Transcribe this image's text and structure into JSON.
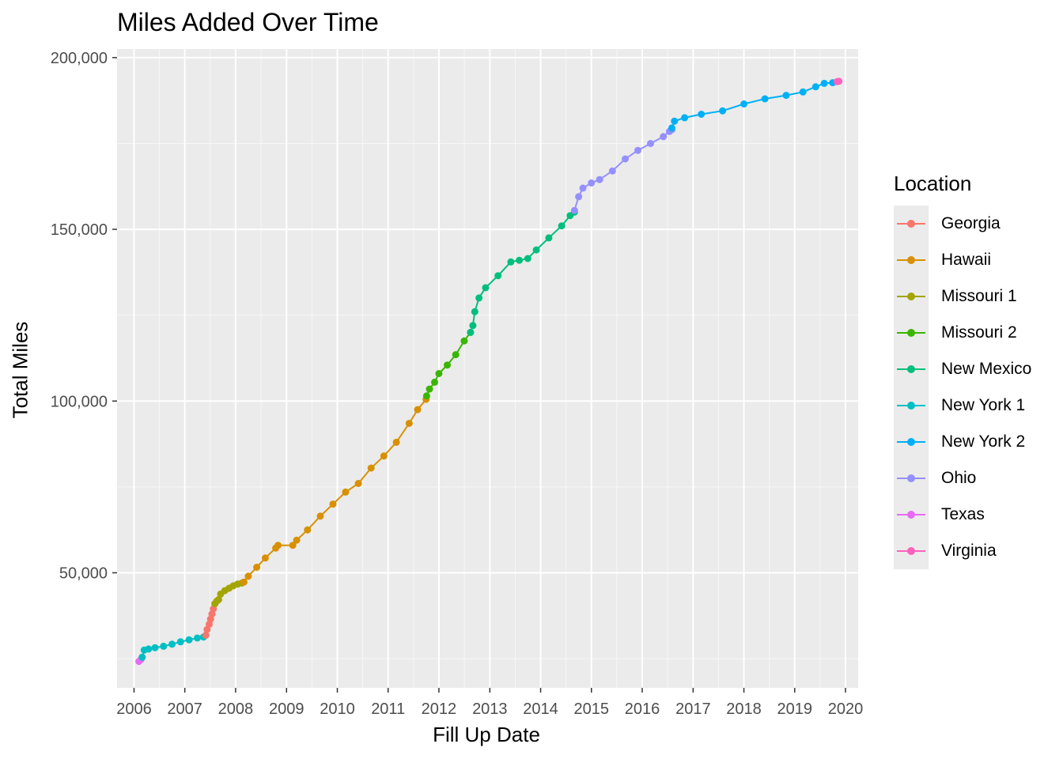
{
  "chart_data": {
    "type": "line",
    "title": "Miles Added Over Time",
    "xlabel": "Fill Up Date",
    "ylabel": "Total Miles",
    "xlim": [
      "2005-09-01",
      "2020-04-01"
    ],
    "ylim": [
      16500,
      202500
    ],
    "x_ticks": [
      "2006",
      "2007",
      "2008",
      "2009",
      "2010",
      "2011",
      "2012",
      "2013",
      "2014",
      "2015",
      "2016",
      "2017",
      "2018",
      "2019",
      "2020"
    ],
    "y_ticks": [
      {
        "value": 50000,
        "label": "50,000"
      },
      {
        "value": 100000,
        "label": "100,000"
      },
      {
        "value": 150000,
        "label": "150,000"
      },
      {
        "value": 200000,
        "label": "200,000"
      }
    ],
    "grid": true,
    "legend": {
      "title": "Location",
      "position": "right"
    },
    "markers": true,
    "series": [
      {
        "name": "Texas",
        "color": "#e76bf3",
        "points": [
          [
            "2006-02-05",
            24200
          ],
          [
            "2006-02-20",
            24800
          ],
          [
            "2006-03-01",
            25400
          ]
        ]
      },
      {
        "name": "New York 1",
        "color": "#00bfc4",
        "points": [
          [
            "2006-03-01",
            25400
          ],
          [
            "2006-03-15",
            27500
          ],
          [
            "2006-04-15",
            27800
          ],
          [
            "2006-06-01",
            28200
          ],
          [
            "2006-08-01",
            28600
          ],
          [
            "2006-10-01",
            29200
          ],
          [
            "2006-12-01",
            29900
          ],
          [
            "2007-02-01",
            30500
          ],
          [
            "2007-04-01",
            31000
          ],
          [
            "2007-05-15",
            31300
          ],
          [
            "2007-06-01",
            31800
          ]
        ]
      },
      {
        "name": "Georgia",
        "color": "#f8766d",
        "points": [
          [
            "2007-06-01",
            31800
          ],
          [
            "2007-06-10",
            33500
          ],
          [
            "2007-06-25",
            35000
          ],
          [
            "2007-07-05",
            36500
          ],
          [
            "2007-07-15",
            38000
          ],
          [
            "2007-07-25",
            39500
          ],
          [
            "2007-08-05",
            41000
          ]
        ]
      },
      {
        "name": "Missouri 1",
        "color": "#a3a500",
        "points": [
          [
            "2007-08-05",
            41000
          ],
          [
            "2007-08-20",
            41800
          ],
          [
            "2007-09-01",
            42200
          ],
          [
            "2007-09-15",
            43800
          ],
          [
            "2007-10-15",
            44800
          ],
          [
            "2007-11-15",
            45500
          ],
          [
            "2007-12-15",
            46200
          ],
          [
            "2008-01-15",
            46700
          ],
          [
            "2008-02-15",
            47000
          ]
        ]
      },
      {
        "name": "Hawaii",
        "color": "#d89000",
        "points": [
          [
            "2008-03-01",
            47300
          ],
          [
            "2008-04-01",
            49000
          ],
          [
            "2008-06-01",
            51600
          ],
          [
            "2008-08-01",
            54300
          ],
          [
            "2008-10-15",
            57200
          ],
          [
            "2008-11-01",
            58000
          ],
          [
            "2009-02-15",
            58000
          ],
          [
            "2009-03-15",
            59500
          ],
          [
            "2009-06-01",
            62500
          ],
          [
            "2009-09-01",
            66500
          ],
          [
            "2009-12-01",
            70000
          ],
          [
            "2010-03-01",
            73500
          ],
          [
            "2010-06-01",
            76000
          ],
          [
            "2010-09-01",
            80500
          ],
          [
            "2010-12-01",
            84000
          ],
          [
            "2011-03-01",
            88000
          ],
          [
            "2011-06-01",
            93500
          ],
          [
            "2011-08-01",
            97500
          ],
          [
            "2011-10-01",
            100500
          ]
        ]
      },
      {
        "name": "Missouri 2",
        "color": "#39b600",
        "points": [
          [
            "2011-10-05",
            101500
          ],
          [
            "2011-10-25",
            103500
          ],
          [
            "2011-12-01",
            105500
          ],
          [
            "2012-01-01",
            108000
          ],
          [
            "2012-03-01",
            110500
          ],
          [
            "2012-05-01",
            113500
          ],
          [
            "2012-07-01",
            117500
          ],
          [
            "2012-08-15",
            120000
          ]
        ]
      },
      {
        "name": "New Mexico",
        "color": "#00bf7d",
        "points": [
          [
            "2012-08-15",
            120000
          ],
          [
            "2012-09-01",
            122000
          ],
          [
            "2012-09-15",
            126000
          ],
          [
            "2012-10-15",
            130000
          ],
          [
            "2012-12-01",
            133000
          ],
          [
            "2013-03-01",
            136500
          ],
          [
            "2013-06-01",
            140500
          ],
          [
            "2013-08-01",
            141000
          ],
          [
            "2013-10-01",
            141500
          ],
          [
            "2013-12-01",
            144000
          ],
          [
            "2014-03-01",
            147500
          ],
          [
            "2014-06-01",
            151000
          ],
          [
            "2014-08-01",
            154000
          ],
          [
            "2014-09-01",
            155000
          ]
        ]
      },
      {
        "name": "Ohio",
        "color": "#9590ff",
        "points": [
          [
            "2014-09-01",
            155500
          ],
          [
            "2014-10-01",
            159500
          ],
          [
            "2014-11-01",
            162000
          ],
          [
            "2015-01-01",
            163500
          ],
          [
            "2015-03-01",
            164500
          ],
          [
            "2015-06-01",
            167000
          ],
          [
            "2015-09-01",
            170500
          ],
          [
            "2015-12-01",
            173000
          ],
          [
            "2016-03-01",
            175000
          ],
          [
            "2016-06-01",
            177000
          ],
          [
            "2016-07-15",
            178500
          ],
          [
            "2016-08-01",
            179000
          ]
        ]
      },
      {
        "name": "New York 2",
        "color": "#00b0f6",
        "points": [
          [
            "2016-08-01",
            179500
          ],
          [
            "2016-08-20",
            181500
          ],
          [
            "2016-11-01",
            182500
          ],
          [
            "2017-03-01",
            183500
          ],
          [
            "2017-08-01",
            184500
          ],
          [
            "2018-01-01",
            186500
          ],
          [
            "2018-06-01",
            188000
          ],
          [
            "2018-11-01",
            189000
          ],
          [
            "2019-03-01",
            190000
          ],
          [
            "2019-06-01",
            191500
          ],
          [
            "2019-08-01",
            192500
          ],
          [
            "2019-10-01",
            192700
          ]
        ]
      },
      {
        "name": "Virginia",
        "color": "#ff62bc",
        "points": [
          [
            "2019-11-01",
            193000
          ],
          [
            "2019-11-15",
            193100
          ]
        ]
      }
    ]
  },
  "legend_order": [
    "Georgia",
    "Hawaii",
    "Missouri 1",
    "Missouri 2",
    "New Mexico",
    "New York 1",
    "New York 2",
    "Ohio",
    "Texas",
    "Virginia"
  ]
}
